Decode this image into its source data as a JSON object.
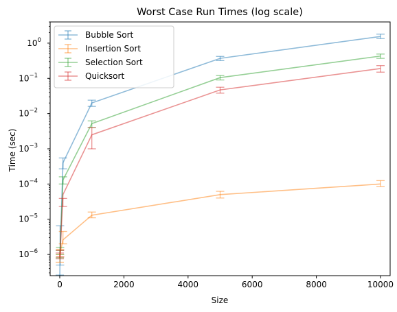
{
  "chart_data": {
    "type": "line",
    "title": "Worst Case Run Times (log scale)",
    "xlabel": "Size",
    "ylabel": "Time (sec)",
    "xlim": [
      -300,
      10300
    ],
    "ylim": [
      2.5e-07,
      4
    ],
    "yscale": "log",
    "grid": false,
    "legend_position": "top-left",
    "x": [
      1,
      10,
      100,
      1000,
      5000,
      10000
    ],
    "x_ticks": [
      0,
      2000,
      4000,
      6000,
      8000,
      10000
    ],
    "x_tick_labels": [
      "0",
      "2000",
      "4000",
      "6000",
      "8000",
      "10000"
    ],
    "y_ticks": [
      1e-06,
      1e-05,
      0.0001,
      0.001,
      0.01,
      0.1,
      1
    ],
    "y_tick_labels": [
      "10",
      "10",
      "10",
      "10",
      "10",
      "10",
      "10"
    ],
    "y_tick_exponents": [
      "−6",
      "−5",
      "−4",
      "−3",
      "−2",
      "−1",
      "0"
    ],
    "series": [
      {
        "name": "Bubble Sort",
        "color": "#1f77b4",
        "values": [
          2e-07,
          1e-06,
          0.0004,
          0.02,
          0.37,
          1.55
        ],
        "err_low": [
          1.5e-07,
          5e-07,
          0.00027,
          0.016,
          0.32,
          1.35
        ],
        "err_high": [
          2.6e-07,
          6.5e-06,
          0.00055,
          0.024,
          0.42,
          1.8
        ]
      },
      {
        "name": "Insertion Sort",
        "color": "#ff7f0e",
        "values": [
          8e-07,
          1.1e-06,
          2.6e-06,
          1.3e-05,
          5e-05,
          0.0001
        ],
        "err_low": [
          6e-07,
          8.5e-07,
          2e-06,
          1.1e-05,
          4e-05,
          8.5e-05
        ],
        "err_high": [
          1e-06,
          1.4e-06,
          4.5e-06,
          1.6e-05,
          6.2e-05,
          0.000125
        ]
      },
      {
        "name": "Selection Sort",
        "color": "#2ca02c",
        "values": [
          1e-06,
          1.2e-06,
          0.00013,
          0.0052,
          0.105,
          0.43
        ],
        "err_low": [
          8e-07,
          1e-06,
          0.0001,
          0.004,
          0.09,
          0.37
        ],
        "err_high": [
          1.3e-06,
          1.6e-06,
          0.00016,
          0.0062,
          0.12,
          0.49
        ]
      },
      {
        "name": "Quicksort",
        "color": "#d62728",
        "values": [
          9e-07,
          1e-06,
          5e-05,
          0.0025,
          0.047,
          0.19
        ],
        "err_low": [
          7.5e-07,
          8.5e-07,
          2.3e-05,
          0.001,
          0.038,
          0.15
        ],
        "err_high": [
          1.1e-06,
          1.3e-06,
          3.9e-05,
          0.004,
          0.056,
          0.23
        ]
      }
    ]
  }
}
